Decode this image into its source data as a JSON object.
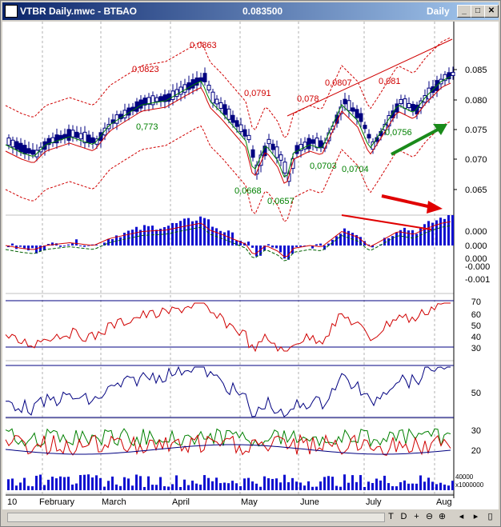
{
  "window": {
    "title": "VTBR Daily.mwc - ВТБАО",
    "price": "0.083500",
    "period": "Daily",
    "minimize_label": "_",
    "maximize_label": "□",
    "close_label": "✕"
  },
  "price_panel": {
    "y_ticks": [
      "0.085",
      "0.080",
      "0.075",
      "0.070",
      "0.065"
    ],
    "annotations_red": [
      "0,0823",
      "0,0863",
      "0,0791",
      "0,078",
      "0,0807",
      "0,081"
    ],
    "annotations_green": [
      "0,773",
      "0,0668",
      "0,0657",
      "0,0703",
      "0,0704",
      "0,0756"
    ]
  },
  "macd_panel": {
    "y_ticks": [
      "0.000",
      "0.000",
      "0.000",
      "-0.000",
      "-0.001"
    ]
  },
  "rsi_panel": {
    "y_ticks": [
      "70",
      "60",
      "50",
      "40",
      "30"
    ]
  },
  "stoch_panel": {
    "y_ticks": [
      "50"
    ]
  },
  "dmi_panel": {
    "y_ticks": [
      "30",
      "20"
    ],
    "volume_label": "x1000000",
    "volume_top": "40000"
  },
  "x_axis": {
    "labels": [
      "10",
      "February",
      "March",
      "April",
      "May",
      "June",
      "July",
      "Aug"
    ]
  },
  "toolbar": {
    "buttons": [
      "T",
      "D",
      "+",
      "⊖",
      "⊕",
      "◂",
      "▸",
      "▯"
    ]
  },
  "colors": {
    "red": "#d00000",
    "green": "#008000",
    "blue": "#0000c0",
    "navy": "#000080"
  }
}
